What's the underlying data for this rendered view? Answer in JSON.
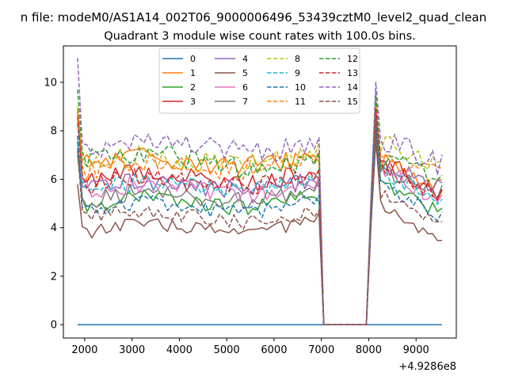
{
  "suptitle": "n file: modeM0/AS1A14_002T06_9000006496_53439cztM0_level2_quad_clean",
  "chart_data": {
    "type": "line",
    "title": "Quadrant 3 module wise count rates with 100.0s bins.",
    "xlabel": "",
    "ylabel": "",
    "xlim": [
      1550,
      9850
    ],
    "ylim": [
      -0.55,
      11.5
    ],
    "x_offset_label": "+4.9286e8",
    "xticks": [
      2000,
      3000,
      4000,
      5000,
      6000,
      7000,
      8000,
      9000
    ],
    "xtick_labels": [
      "2000",
      "3000",
      "4000",
      "5000",
      "6000",
      "7000",
      "8000",
      "9000"
    ],
    "yticks": [
      0,
      2,
      4,
      6,
      8,
      10
    ],
    "ytick_labels": [
      "0",
      "2",
      "4",
      "6",
      "8",
      "10"
    ],
    "grid": false,
    "legend_location": "top-center",
    "legend_columns": 4,
    "x_start": 1850,
    "x_step": 100,
    "gap_start": 7050,
    "gap_end": 7950,
    "series": [
      {
        "name": "0",
        "color": "#1f77b4",
        "dashed": false,
        "constant": 0
      },
      {
        "name": "1",
        "color": "#ff7f0e",
        "dashed": false,
        "start": 8.4,
        "level1": 6.6,
        "end1": 6.9,
        "peak2": 9.1,
        "level2": 6.2,
        "end2": 5.7
      },
      {
        "name": "2",
        "color": "#2ca02c",
        "dashed": false,
        "start": 7.0,
        "level1": 4.9,
        "end1": 5.2,
        "peak2": 8.0,
        "level2": 5.2,
        "end2": 4.6
      },
      {
        "name": "3",
        "color": "#d62728",
        "dashed": false,
        "start": 8.8,
        "level1": 6.0,
        "end1": 6.2,
        "peak2": 8.6,
        "level2": 6.2,
        "end2": 5.3
      },
      {
        "name": "4",
        "color": "#9467bd",
        "dashed": false,
        "start": 7.3,
        "level1": 5.6,
        "end1": 5.9,
        "peak2": 8.8,
        "level2": 6.0,
        "end2": 5.6
      },
      {
        "name": "5",
        "color": "#8c564b",
        "dashed": false,
        "start": 5.8,
        "level1": 3.8,
        "end1": 4.2,
        "peak2": 7.6,
        "level2": 4.3,
        "end2": 3.3
      },
      {
        "name": "6",
        "color": "#e377c2",
        "dashed": false,
        "start": 7.5,
        "level1": 5.5,
        "end1": 5.6,
        "peak2": 8.2,
        "level2": 5.9,
        "end2": 5.1
      },
      {
        "name": "7",
        "color": "#7f7f7f",
        "dashed": false,
        "start": 7.6,
        "level1": 5.1,
        "end1": 5.5,
        "peak2": 8.3,
        "level2": 5.8,
        "end2": 5.5
      },
      {
        "name": "8",
        "color": "#bcbd22",
        "dashed": true,
        "start": 9.0,
        "level1": 6.6,
        "end1": 7.0,
        "peak2": 9.4,
        "level2": 6.9,
        "end2": 6.4
      },
      {
        "name": "9",
        "color": "#17becf",
        "dashed": true,
        "start": 8.3,
        "level1": 5.5,
        "end1": 6.0,
        "peak2": 8.6,
        "level2": 5.8,
        "end2": 4.9
      },
      {
        "name": "10",
        "color": "#1f77b4",
        "dashed": true,
        "start": 7.8,
        "level1": 4.7,
        "end1": 5.0,
        "peak2": 8.1,
        "level2": 5.3,
        "end2": 4.4
      },
      {
        "name": "11",
        "color": "#ff7f0e",
        "dashed": true,
        "start": 8.9,
        "level1": 6.4,
        "end1": 6.8,
        "peak2": 9.0,
        "level2": 6.5,
        "end2": 6.1
      },
      {
        "name": "12",
        "color": "#2ca02c",
        "dashed": true,
        "start": 9.7,
        "level1": 6.8,
        "end1": 6.7,
        "peak2": 9.6,
        "level2": 6.3,
        "end2": 5.8
      },
      {
        "name": "13",
        "color": "#d62728",
        "dashed": true,
        "start": 8.6,
        "level1": 5.7,
        "end1": 6.1,
        "peak2": 8.9,
        "level2": 6.0,
        "end2": 5.3
      },
      {
        "name": "14",
        "color": "#9467bd",
        "dashed": true,
        "start": 11.0,
        "level1": 7.3,
        "end1": 7.4,
        "peak2": 10.0,
        "level2": 7.1,
        "end2": 6.6
      },
      {
        "name": "15",
        "color": "#8c564b",
        "dashed": true,
        "start": 7.2,
        "level1": 4.4,
        "end1": 4.5,
        "peak2": 8.6,
        "level2": 4.8,
        "end2": 4.0
      }
    ]
  }
}
